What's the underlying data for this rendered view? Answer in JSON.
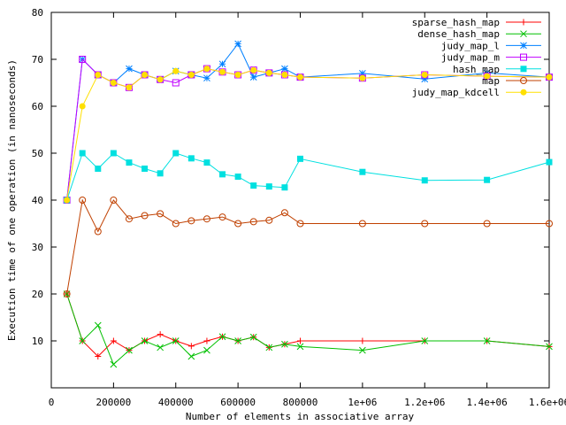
{
  "chart_data": {
    "type": "line",
    "xlabel": "Number of elements in associative array",
    "ylabel": "Execution time of one operation (in nanoseconds)",
    "xlim": [
      0,
      1600000
    ],
    "ylim": [
      0,
      80
    ],
    "grid": false,
    "legend_position": "top-right",
    "x_ticks": [
      {
        "value": 0,
        "label": "0"
      },
      {
        "value": 200000,
        "label": "200000"
      },
      {
        "value": 400000,
        "label": "400000"
      },
      {
        "value": 600000,
        "label": "600000"
      },
      {
        "value": 800000,
        "label": "800000"
      },
      {
        "value": 1000000,
        "label": "1e+06"
      },
      {
        "value": 1200000,
        "label": "1.2e+06"
      },
      {
        "value": 1400000,
        "label": "1.4e+06"
      },
      {
        "value": 1600000,
        "label": "1.6e+06"
      }
    ],
    "y_ticks": [
      {
        "value": 10,
        "label": "10"
      },
      {
        "value": 20,
        "label": "20"
      },
      {
        "value": 30,
        "label": "30"
      },
      {
        "value": 40,
        "label": "40"
      },
      {
        "value": 50,
        "label": "50"
      },
      {
        "value": 60,
        "label": "60"
      },
      {
        "value": 70,
        "label": "70"
      },
      {
        "value": 80,
        "label": "80"
      }
    ],
    "series": [
      {
        "name": "sparse_hash_map",
        "color": "#ff0000",
        "marker": "plus",
        "x": [
          50000,
          100000,
          150000,
          200000,
          250000,
          300000,
          350000,
          400000,
          450000,
          500000,
          550000,
          600000,
          650000,
          700000,
          750000,
          800000,
          1000000,
          1200000,
          1400000,
          1600000
        ],
        "y": [
          20,
          10,
          6.7,
          10,
          8,
          10,
          11.4,
          10,
          8.9,
          10,
          10.9,
          10,
          10.8,
          8.6,
          9.3,
          10,
          10,
          10,
          10,
          8.8
        ]
      },
      {
        "name": "dense_hash_map",
        "color": "#00c000",
        "marker": "cross",
        "x": [
          50000,
          100000,
          150000,
          200000,
          250000,
          300000,
          350000,
          400000,
          450000,
          500000,
          550000,
          600000,
          650000,
          700000,
          750000,
          800000,
          1000000,
          1200000,
          1400000,
          1600000
        ],
        "y": [
          20,
          10,
          13.3,
          5,
          8,
          10,
          8.6,
          10,
          6.7,
          8,
          10.9,
          10,
          10.8,
          8.6,
          9.3,
          8.8,
          8,
          10,
          10,
          8.8
        ]
      },
      {
        "name": "judy_map_l",
        "color": "#0080ff",
        "marker": "star",
        "x": [
          50000,
          100000,
          150000,
          200000,
          250000,
          300000,
          350000,
          400000,
          450000,
          500000,
          550000,
          600000,
          650000,
          700000,
          750000,
          800000,
          1000000,
          1200000,
          1400000,
          1600000
        ],
        "y": [
          40,
          70,
          66.7,
          65,
          68,
          66.7,
          65.7,
          67.5,
          66.7,
          66,
          69,
          73.3,
          66.2,
          67.1,
          68,
          66.2,
          67,
          65.8,
          67.1,
          66.2
        ]
      },
      {
        "name": "judy_map_m",
        "color": "#c000ff",
        "marker": "open-square",
        "x": [
          50000,
          100000,
          150000,
          200000,
          250000,
          300000,
          350000,
          400000,
          450000,
          500000,
          550000,
          600000,
          650000,
          700000,
          750000,
          800000,
          1000000,
          1200000,
          1400000,
          1600000
        ],
        "y": [
          40,
          70,
          66.7,
          65,
          64,
          66.7,
          65.7,
          65,
          66.7,
          68,
          67.3,
          66.7,
          67.7,
          67.1,
          66.7,
          66.2,
          66,
          66.7,
          66.4,
          66.2
        ]
      },
      {
        "name": "hash_map",
        "color": "#00e0e0",
        "marker": "filled-square",
        "x": [
          50000,
          100000,
          150000,
          200000,
          250000,
          300000,
          350000,
          400000,
          450000,
          500000,
          550000,
          600000,
          650000,
          700000,
          750000,
          800000,
          1000000,
          1200000,
          1400000,
          1600000
        ],
        "y": [
          40,
          50,
          46.7,
          50,
          48,
          46.7,
          45.7,
          50,
          48.9,
          48,
          45.5,
          45,
          43.1,
          42.9,
          42.7,
          48.8,
          46,
          44.2,
          44.3,
          48.1
        ]
      },
      {
        "name": "map",
        "color": "#c04000",
        "marker": "open-circle",
        "x": [
          50000,
          100000,
          150000,
          200000,
          250000,
          300000,
          350000,
          400000,
          450000,
          500000,
          550000,
          600000,
          650000,
          700000,
          750000,
          800000,
          1000000,
          1200000,
          1400000,
          1600000
        ],
        "y": [
          20,
          40,
          33.3,
          40,
          36,
          36.7,
          37.1,
          35,
          35.6,
          36,
          36.4,
          35,
          35.4,
          35.7,
          37.3,
          35,
          35,
          35,
          35,
          35
        ]
      },
      {
        "name": "judy_map_kdcell",
        "color": "#ffe000",
        "marker": "filled-circle",
        "x": [
          50000,
          100000,
          150000,
          200000,
          250000,
          300000,
          350000,
          400000,
          450000,
          500000,
          550000,
          600000,
          650000,
          700000,
          750000,
          800000,
          1000000,
          1200000,
          1400000,
          1600000
        ],
        "y": [
          40,
          60,
          66.7,
          65,
          64,
          66.7,
          65.7,
          67.5,
          66.7,
          68,
          67.3,
          66.7,
          67.7,
          67.1,
          66.7,
          66.2,
          66,
          66.7,
          66.4,
          66.2
        ]
      }
    ]
  }
}
